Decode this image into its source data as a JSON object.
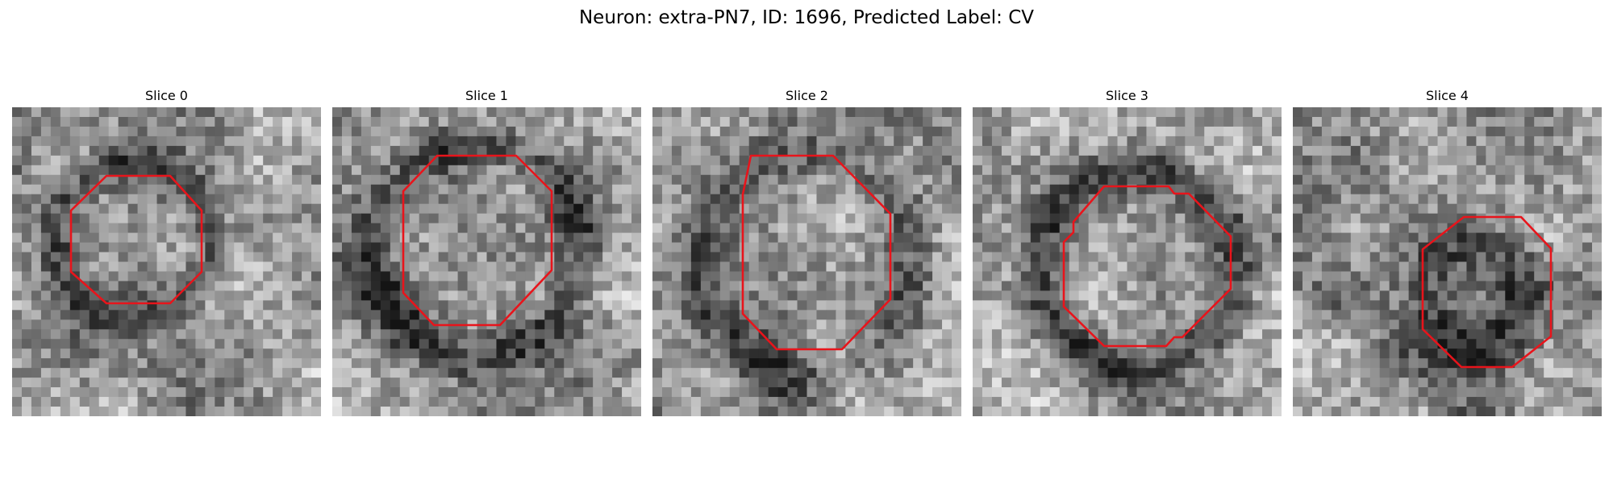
{
  "figure": {
    "title": "Neuron: extra-PN7, ID: 1696, Predicted Label: CV",
    "contour_color": "#e8141b",
    "colormap": "gray"
  },
  "slices": [
    {
      "label": "Slice 0"
    },
    {
      "label": "Slice 1"
    },
    {
      "label": "Slice 2"
    },
    {
      "label": "Slice 3"
    },
    {
      "label": "Slice 4"
    }
  ]
}
